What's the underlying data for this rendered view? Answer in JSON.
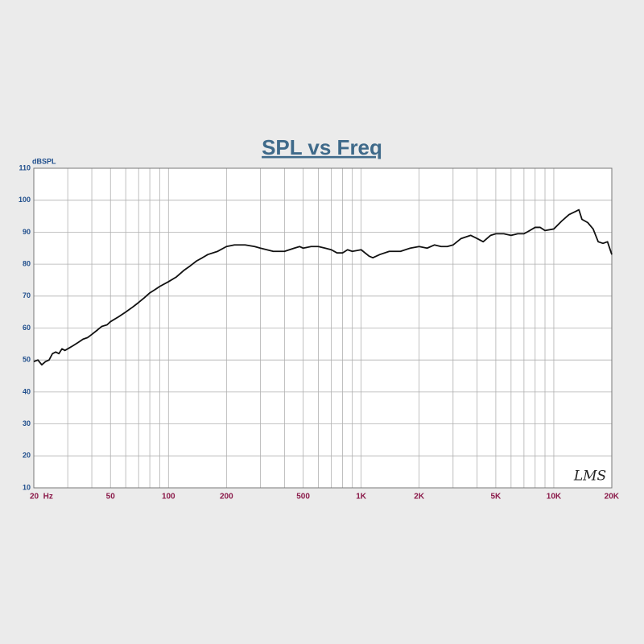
{
  "chart_data": {
    "type": "line",
    "title": "SPL vs Freq",
    "y_label": "dBSPL",
    "watermark": "LMS",
    "log_x": true,
    "grid": true,
    "xlim": [
      20,
      20000
    ],
    "ylim": [
      10,
      110
    ],
    "xticks": [
      {
        "value": 20,
        "label": "20  Hz"
      },
      50,
      100,
      200,
      500,
      {
        "value": 1000,
        "label": "1K"
      },
      {
        "value": 2000,
        "label": "2K"
      },
      {
        "value": 5000,
        "label": "5K"
      },
      {
        "value": 10000,
        "label": "10K"
      },
      {
        "value": 20000,
        "label": "20K"
      }
    ],
    "xgrid": [
      30,
      40,
      60,
      70,
      80,
      90,
      300,
      400,
      600,
      700,
      800,
      900,
      3000,
      4000,
      6000,
      7000,
      8000,
      9000
    ],
    "yticks": [
      10,
      20,
      30,
      40,
      50,
      60,
      70,
      80,
      90,
      100,
      110
    ],
    "x": [
      20,
      21,
      22,
      23,
      24,
      25,
      26,
      27,
      28,
      29,
      30,
      32,
      34,
      36,
      38,
      40,
      43,
      45,
      48,
      50,
      55,
      60,
      65,
      70,
      75,
      80,
      85,
      90,
      100,
      110,
      120,
      130,
      140,
      150,
      160,
      180,
      200,
      220,
      250,
      280,
      300,
      350,
      400,
      450,
      480,
      500,
      550,
      600,
      650,
      700,
      750,
      800,
      850,
      900,
      1000,
      1100,
      1150,
      1250,
      1400,
      1600,
      1800,
      2000,
      2200,
      2400,
      2600,
      2800,
      3000,
      3300,
      3700,
      4000,
      4300,
      4700,
      5000,
      5500,
      6000,
      6500,
      7000,
      7500,
      8000,
      8500,
      9000,
      10000,
      11000,
      12000,
      13000,
      13500,
      14000,
      15000,
      16000,
      17000,
      18000,
      19000,
      20000
    ],
    "series": [
      {
        "name": "SPL",
        "color": "#111111",
        "values": [
          49.5,
          50,
          48.5,
          49.5,
          50,
          52,
          52.5,
          52,
          53.5,
          53,
          53.5,
          54.5,
          55.5,
          56.5,
          57,
          58,
          59.5,
          60.5,
          61,
          62,
          63.5,
          65,
          66.5,
          68,
          69.5,
          71,
          72,
          73,
          74.5,
          76,
          78,
          79.5,
          81,
          82,
          83,
          84,
          85.5,
          86,
          86,
          85.5,
          85,
          84,
          84,
          85,
          85.5,
          85,
          85.5,
          85.5,
          85,
          84.5,
          83.5,
          83.5,
          84.5,
          84,
          84.5,
          82.5,
          82,
          83,
          84,
          84,
          85,
          85.5,
          85,
          86,
          85.5,
          85.5,
          86,
          88,
          89,
          88,
          87,
          89,
          89.5,
          89.5,
          89,
          89.5,
          89.5,
          90.5,
          91.5,
          91.5,
          90.5,
          91,
          93.5,
          95.5,
          96.5,
          97,
          94,
          93,
          91,
          87,
          86.5,
          87,
          83
        ]
      }
    ]
  }
}
